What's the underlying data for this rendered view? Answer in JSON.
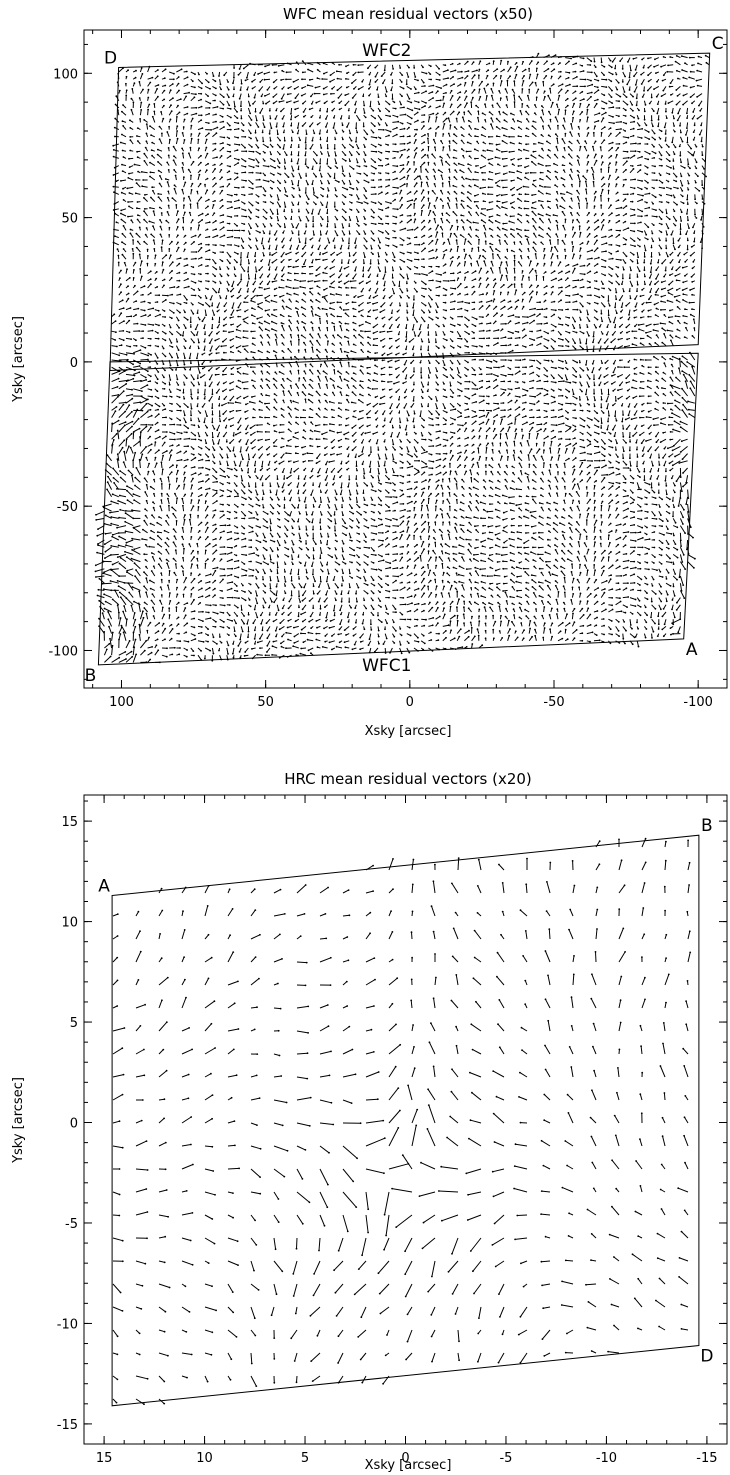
{
  "chart_data": [
    {
      "type": "quiver",
      "title": "WFC mean residual vectors (x50)",
      "xlabel": "Xsky [arcsec]",
      "ylabel": "Ysky [arcsec]",
      "xlim": [
        113,
        -110
      ],
      "ylim": [
        -113,
        115
      ],
      "x_reversed": true,
      "xticks": [
        100,
        50,
        0,
        -50,
        -100
      ],
      "yticks": [
        -100,
        -50,
        0,
        50,
        100
      ],
      "vector_scale": 50,
      "chips": [
        {
          "name": "WFC2",
          "label_x": 8,
          "label_y": 108,
          "polygon": [
            [
              101,
              102
            ],
            [
              -104,
              107
            ],
            [
              -100,
              6
            ],
            [
              104,
              -3
            ]
          ]
        },
        {
          "name": "WFC1",
          "label_x": 8,
          "label_y": -105,
          "polygon": [
            [
              104,
              0
            ],
            [
              -100,
              3
            ],
            [
              -95,
              -96
            ],
            [
              108,
              -105
            ]
          ]
        }
      ],
      "corners": [
        {
          "label": "D",
          "x": 101,
          "y": 102
        },
        {
          "label": "C",
          "x": -104,
          "y": 107
        },
        {
          "label": "A",
          "x": -95,
          "y": -96
        },
        {
          "label": "B",
          "x": 108,
          "y": -105
        }
      ],
      "grid": false
    },
    {
      "type": "quiver",
      "title": "HRC mean residual vectors (x20)",
      "xlabel": "Xsky [arcsec]",
      "ylabel": "Ysky [arcsec]",
      "xlim": [
        16,
        -16
      ],
      "ylim": [
        -16,
        16.3
      ],
      "x_reversed": true,
      "xticks": [
        15,
        10,
        5,
        0,
        -5,
        -10,
        -15
      ],
      "yticks": [
        -15,
        -10,
        -5,
        0,
        5,
        10,
        15
      ],
      "vector_scale": 20,
      "polygon": [
        [
          14.6,
          11.3
        ],
        [
          -14.6,
          14.3
        ],
        [
          -14.6,
          -11.1
        ],
        [
          14.6,
          -14.1
        ]
      ],
      "corners": [
        {
          "label": "A",
          "x": 14.6,
          "y": 11.3
        },
        {
          "label": "B",
          "x": -14.6,
          "y": 14.3
        },
        {
          "label": "D",
          "x": -14.6,
          "y": -11.1
        }
      ],
      "grid": false
    }
  ]
}
